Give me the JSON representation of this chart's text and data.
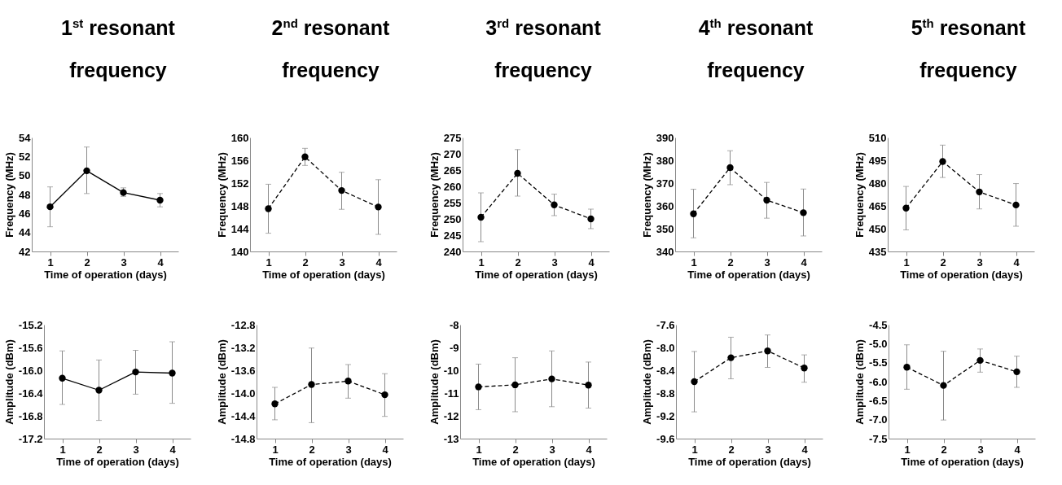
{
  "chart_data": [
    {
      "type": "line",
      "title": "1$^{st}$ resonant frequency",
      "xlabel": "Time of operation (days)",
      "ylabel": "Frequency (MHz)",
      "categories": [
        "1",
        "2",
        "3",
        "4"
      ],
      "ylim": [
        42,
        54
      ],
      "yticks": [
        42,
        44,
        46,
        48,
        50,
        52,
        54
      ],
      "grid": false,
      "marker": "circle",
      "line_style": "solid",
      "series": [
        {
          "color": "#000000",
          "values": [
            46.7,
            50.5,
            48.2,
            47.4
          ],
          "errors": [
            [
              44.6,
              48.8
            ],
            [
              48.1,
              53.0
            ],
            [
              47.8,
              48.7
            ],
            [
              46.7,
              48.1
            ]
          ]
        }
      ]
    },
    {
      "type": "line",
      "title": "2$^{nd}$ resonant frequency",
      "xlabel": "Time of operation (days)",
      "ylabel": "Frequency (MHz)",
      "categories": [
        "1",
        "2",
        "3",
        "4"
      ],
      "ylim": [
        140,
        160
      ],
      "yticks": [
        140,
        144,
        148,
        152,
        156,
        160
      ],
      "grid": false,
      "marker": "circle",
      "line_style": "dashed",
      "series": [
        {
          "color": "#000000",
          "values": [
            147.5,
            156.6,
            150.7,
            147.8
          ],
          "errors": [
            [
              143.2,
              151.8
            ],
            [
              155.1,
              158.1
            ],
            [
              147.4,
              153.9
            ],
            [
              143.0,
              152.6
            ]
          ]
        }
      ]
    },
    {
      "type": "line",
      "title": "3$^{rd}$ resonant frequency",
      "xlabel": "Time of operation (days)",
      "ylabel": "Frequency (MHz)",
      "categories": [
        "1",
        "2",
        "3",
        "4"
      ],
      "ylim": [
        240,
        275
      ],
      "yticks": [
        240,
        245,
        250,
        255,
        260,
        265,
        270,
        275
      ],
      "grid": false,
      "marker": "circle",
      "line_style": "dashed",
      "series": [
        {
          "color": "#000000",
          "values": [
            250.5,
            264,
            254.3,
            250
          ],
          "errors": [
            [
              243,
              258
            ],
            [
              257,
              271.3
            ],
            [
              251,
              257.6
            ],
            [
              247,
              253
            ]
          ]
        }
      ]
    },
    {
      "type": "line",
      "title": "4$^{th}$ resonant frequency",
      "xlabel": "Time of operation (days)",
      "ylabel": "Frequency (MHz)",
      "categories": [
        "1",
        "2",
        "3",
        "4"
      ],
      "ylim": [
        340,
        390
      ],
      "yticks": [
        340,
        350,
        360,
        370,
        380,
        390
      ],
      "grid": false,
      "marker": "circle",
      "line_style": "dashed",
      "series": [
        {
          "color": "#000000",
          "values": [
            356.5,
            376.8,
            362.5,
            357
          ],
          "errors": [
            [
              346,
              367.3
            ],
            [
              369.3,
              384.2
            ],
            [
              354.6,
              370.3
            ],
            [
              346.8,
              367.4
            ]
          ]
        }
      ]
    },
    {
      "type": "line",
      "title": "5$^{th}$ resonant frequency",
      "xlabel": "Time of operation (days)",
      "ylabel": "Frequency (MHz)",
      "categories": [
        "1",
        "2",
        "3",
        "4"
      ],
      "ylim": [
        435,
        510
      ],
      "yticks": [
        435,
        450,
        465,
        480,
        495,
        510
      ],
      "grid": false,
      "marker": "circle",
      "line_style": "dashed",
      "series": [
        {
          "color": "#000000",
          "values": [
            463.5,
            494.2,
            474.2,
            465.6
          ],
          "errors": [
            [
              449.2,
              477.8
            ],
            [
              483.7,
              505
            ],
            [
              463,
              485.6
            ],
            [
              451.6,
              479.7
            ]
          ]
        }
      ]
    },
    {
      "type": "line",
      "xlabel": "Time of operation (days)",
      "ylabel": "Amplitude (dBm)",
      "categories": [
        "1",
        "2",
        "3",
        "4"
      ],
      "ylim": [
        -17.2,
        -15.2
      ],
      "yticks": [
        -17.2,
        -16.8,
        -16.4,
        {
          "value": -16,
          "label": "-16.0"
        },
        -15.6,
        -15.2
      ],
      "grid": false,
      "marker": "circle",
      "line_style": "solid",
      "series": [
        {
          "color": "#000000",
          "values": [
            -16.14,
            -16.35,
            -16.03,
            -16.05
          ],
          "errors": [
            [
              -16.6,
              -15.66
            ],
            [
              -16.88,
              -15.82
            ],
            [
              -16.42,
              -15.65
            ],
            [
              -16.58,
              -15.5
            ]
          ]
        }
      ]
    },
    {
      "type": "line",
      "xlabel": "Time of operation (days)",
      "ylabel": "Amplitude (dBm)",
      "categories": [
        "1",
        "2",
        "3",
        "4"
      ],
      "ylim": [
        -14.8,
        -12.8
      ],
      "yticks": [
        -14.8,
        -14.4,
        {
          "value": -14,
          "label": "-14.0"
        },
        -13.6,
        -13.2,
        -12.8
      ],
      "grid": false,
      "marker": "circle",
      "line_style": "dashed",
      "series": [
        {
          "color": "#000000",
          "values": [
            -14.19,
            -13.85,
            -13.79,
            -14.03
          ],
          "errors": [
            [
              -14.47,
              -13.9
            ],
            [
              -14.52,
              -13.21
            ],
            [
              -14.09,
              -13.5
            ],
            [
              -14.41,
              -13.66
            ]
          ]
        }
      ]
    },
    {
      "type": "line",
      "xlabel": "Time of operation (days)",
      "ylabel": "Amplitude (dBm)",
      "categories": [
        "1",
        "2",
        "3",
        "4"
      ],
      "ylim": [
        -13,
        -8
      ],
      "yticks": [
        -13,
        -12,
        -11,
        -10,
        -9,
        -8
      ],
      "grid": false,
      "marker": "circle",
      "line_style": "dashed",
      "series": [
        {
          "color": "#000000",
          "values": [
            -10.73,
            -10.64,
            -10.38,
            -10.65
          ],
          "errors": [
            [
              -11.73,
              -9.73
            ],
            [
              -11.82,
              -9.45
            ],
            [
              -11.6,
              -9.15
            ],
            [
              -11.66,
              -9.64
            ]
          ]
        }
      ]
    },
    {
      "type": "line",
      "xlabel": "Time of operation (days)",
      "ylabel": "Amplitude (dBm)",
      "categories": [
        "1",
        "2",
        "3",
        "4"
      ],
      "ylim": [
        -9.6,
        -7.6
      ],
      "yticks": [
        -9.6,
        -9.2,
        -8.8,
        -8.4,
        {
          "value": -8,
          "label": "-8.0"
        },
        -7.6
      ],
      "grid": false,
      "marker": "circle",
      "line_style": "dashed",
      "series": [
        {
          "color": "#000000",
          "values": [
            -8.6,
            -8.18,
            -8.06,
            -8.36
          ],
          "errors": [
            [
              -9.13,
              -8.07
            ],
            [
              -8.55,
              -7.82
            ],
            [
              -8.35,
              -7.78
            ],
            [
              -8.61,
              -8.13
            ]
          ]
        }
      ]
    },
    {
      "type": "line",
      "xlabel": "Time of operation (days)",
      "ylabel": "Amplitude (dBm)",
      "categories": [
        "1",
        "2",
        "3",
        "4"
      ],
      "ylim": [
        -7.5,
        -4.5
      ],
      "yticks": [
        -7.5,
        {
          "value": -7,
          "label": "-7.0"
        },
        -6.5,
        {
          "value": -6,
          "label": "-6.0"
        },
        -5.5,
        {
          "value": -5,
          "label": "-5.0"
        },
        -4.5
      ],
      "grid": false,
      "marker": "circle",
      "line_style": "dashed",
      "series": [
        {
          "color": "#000000",
          "values": [
            -5.62,
            -6.1,
            -5.44,
            -5.74
          ],
          "errors": [
            [
              -6.2,
              -5.03
            ],
            [
              -7.01,
              -5.2
            ],
            [
              -5.75,
              -5.14
            ],
            [
              -6.15,
              -5.33
            ]
          ]
        }
      ]
    }
  ]
}
